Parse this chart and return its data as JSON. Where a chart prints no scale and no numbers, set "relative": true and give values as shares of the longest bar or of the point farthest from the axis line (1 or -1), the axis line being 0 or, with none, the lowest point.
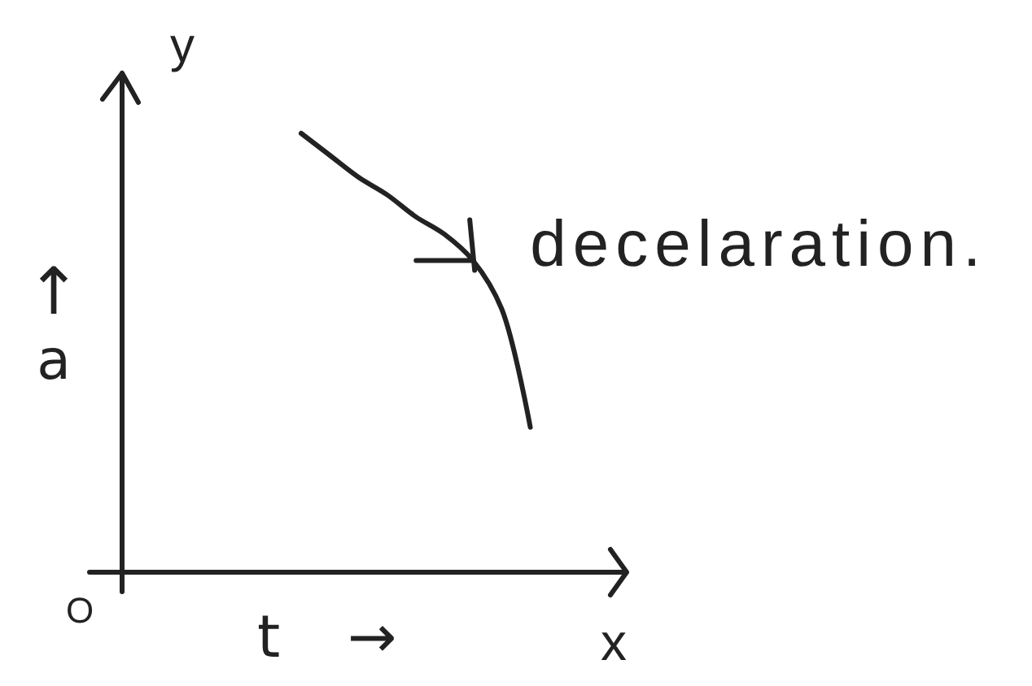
{
  "chart_data": {
    "type": "line",
    "relative": true,
    "xlabel": "t →",
    "ylabel": "↑ a",
    "annotations": [
      "O",
      "x",
      "y"
    ],
    "categories": [
      null,
      null,
      null,
      null,
      null,
      null,
      null,
      null,
      null,
      null,
      null,
      null,
      null,
      null,
      null,
      null,
      null,
      null
    ],
    "series": [
      {
        "name": "decelaration.",
        "color": "#222222",
        "values": [
          null,
          null,
          null,
          null,
          null,
          null,
          1,
          0.95,
          0.9,
          0.86,
          0.81,
          0.77,
          0.71,
          0.6,
          0.33,
          null,
          null,
          null
        ]
      }
    ]
  }
}
